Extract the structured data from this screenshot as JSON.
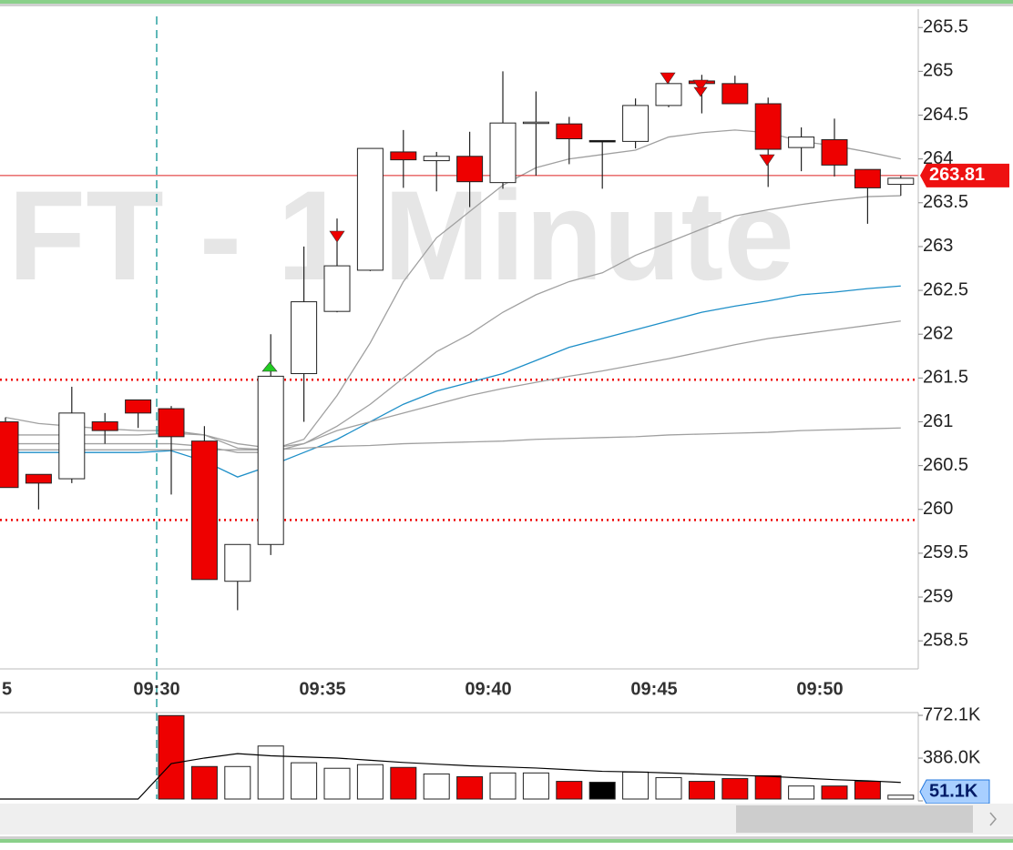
{
  "chart_data": {
    "type": "candlestick",
    "watermark": "FT - 1 Minute",
    "categories": [
      "5",
      null,
      null,
      null,
      null,
      "09:30",
      null,
      null,
      null,
      null,
      "09:35",
      null,
      null,
      null,
      null,
      "09:40",
      null,
      null,
      null,
      null,
      "09:45",
      null,
      null,
      null,
      null,
      "09:50",
      null,
      null
    ],
    "open": [
      261.0,
      260.4,
      260.35,
      261.0,
      261.25,
      261.15,
      260.78,
      259.18,
      259.6,
      261.55,
      262.26,
      262.73,
      264.08,
      263.98,
      264.03,
      263.73,
      264.41,
      264.4,
      264.21,
      264.2,
      264.61,
      264.89,
      264.86,
      264.63,
      264.13,
      264.22,
      263.88,
      263.71
    ],
    "high": [
      261.05,
      260.4,
      261.4,
      261.1,
      261.25,
      261.18,
      260.95,
      259.6,
      262.0,
      263.0,
      263.32,
      264.12,
      264.33,
      264.08,
      264.31,
      265.0,
      264.77,
      264.48,
      264.21,
      264.69,
      264.96,
      264.96,
      264.95,
      264.7,
      264.36,
      264.46,
      263.88,
      263.81
    ],
    "low": [
      260.25,
      260.0,
      260.3,
      260.75,
      260.93,
      260.17,
      259.2,
      258.85,
      259.48,
      261.0,
      262.25,
      262.72,
      263.67,
      263.63,
      263.45,
      263.66,
      263.81,
      263.94,
      263.66,
      264.12,
      264.59,
      264.52,
      264.63,
      263.68,
      263.86,
      263.8,
      263.26,
      263.58
    ],
    "close": [
      260.25,
      260.3,
      261.1,
      260.9,
      261.1,
      260.83,
      259.2,
      259.6,
      261.52,
      262.37,
      262.78,
      264.12,
      263.99,
      264.03,
      263.74,
      264.41,
      264.42,
      264.23,
      264.21,
      264.61,
      264.86,
      264.86,
      264.63,
      264.11,
      264.25,
      263.93,
      263.67,
      263.78
    ],
    "ylim": [
      258.18,
      265.71
    ],
    "yticks": [
      258.5,
      259,
      259.5,
      260,
      260.5,
      261,
      261.5,
      262,
      262.5,
      263,
      263.5,
      264,
      264.5,
      265,
      265.5
    ],
    "last_price": 263.81,
    "levels": [
      261.48,
      259.88
    ],
    "up_color": "#ffffff",
    "down_color": "#ee0000",
    "flat_color": "#000000",
    "series": [
      {
        "color": "#a0a0a0",
        "values": [
          261.05,
          260.98,
          260.95,
          260.92,
          260.9,
          260.9,
          260.85,
          260.7,
          260.68,
          260.8,
          261.3,
          261.9,
          262.6,
          263.1,
          263.4,
          263.7,
          263.9,
          264.0,
          264.05,
          264.1,
          264.25,
          264.3,
          264.33,
          264.3,
          264.2,
          264.15,
          264.08,
          264.0
        ]
      },
      {
        "color": "#a0a0a0",
        "values": [
          260.85,
          260.85,
          260.85,
          260.85,
          260.85,
          260.87,
          260.85,
          260.75,
          260.7,
          260.75,
          260.95,
          261.2,
          261.5,
          261.8,
          262.0,
          262.25,
          262.45,
          262.6,
          262.7,
          262.9,
          263.05,
          263.2,
          263.35,
          263.42,
          263.48,
          263.53,
          263.57,
          263.58
        ]
      },
      {
        "color": "#1e8fc8",
        "values": [
          260.65,
          260.65,
          260.65,
          260.65,
          260.65,
          260.67,
          260.55,
          260.37,
          260.5,
          260.65,
          260.8,
          261.0,
          261.2,
          261.35,
          261.45,
          261.55,
          261.7,
          261.85,
          261.95,
          262.05,
          262.15,
          262.25,
          262.32,
          262.38,
          262.45,
          262.48,
          262.52,
          262.55
        ]
      },
      {
        "color": "#a0a0a0",
        "values": [
          260.75,
          260.75,
          260.75,
          260.75,
          260.75,
          260.75,
          260.72,
          260.65,
          260.65,
          260.75,
          260.9,
          261.0,
          261.1,
          261.2,
          261.3,
          261.38,
          261.45,
          261.52,
          261.58,
          261.65,
          261.72,
          261.8,
          261.88,
          261.95,
          262.0,
          262.05,
          262.1,
          262.15
        ]
      },
      {
        "color": "#a0a0a0",
        "values": [
          260.68,
          260.68,
          260.68,
          260.68,
          260.68,
          260.68,
          260.68,
          260.68,
          260.68,
          260.7,
          260.72,
          260.73,
          260.75,
          260.76,
          260.77,
          260.78,
          260.8,
          260.81,
          260.82,
          260.83,
          260.85,
          260.86,
          260.87,
          260.88,
          260.9,
          260.91,
          260.92,
          260.93
        ]
      }
    ],
    "volume": {
      "type": "bar",
      "values": [
        0,
        0,
        0,
        0,
        0,
        770000,
        310000,
        310000,
        495000,
        344000,
        294000,
        327000,
        302000,
        243000,
        218000,
        252000,
        252000,
        176000,
        168000,
        260000,
        210000,
        176000,
        201000,
        227000,
        134000,
        134000,
        176000,
        51100
      ],
      "value_labels": [
        null,
        null,
        null,
        null,
        null,
        null,
        null,
        null,
        null,
        null,
        null,
        null,
        null,
        null,
        null,
        null,
        null,
        null,
        null,
        null,
        null,
        null,
        null,
        null,
        null,
        null,
        null,
        "51.1K"
      ],
      "ylim": [
        0,
        797000
      ],
      "yticks": [
        0,
        {
          "value": 386000,
          "label": "386.0K"
        },
        {
          "value": 772100,
          "label": "772.1K"
        }
      ],
      "average": {
        "color": "#000000",
        "values": [
          0,
          0,
          0,
          0,
          0,
          320000,
          370000,
          410000,
          390000,
          380000,
          370000,
          350000,
          330000,
          315000,
          300000,
          290000,
          280000,
          265000,
          250000,
          245000,
          235000,
          225000,
          215000,
          205000,
          190000,
          175000,
          165000,
          150000
        ]
      }
    }
  }
}
